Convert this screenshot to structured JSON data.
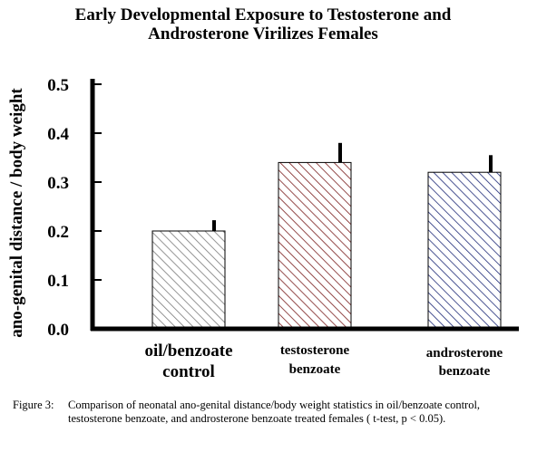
{
  "chart_data": {
    "type": "bar",
    "title_lines": [
      "Early Developmental Exposure to Testosterone and",
      "Androsterone Virilizes Females"
    ],
    "ylabel": "ano-genital distance / body weight",
    "xlabel": "",
    "ylim": [
      0,
      0.5
    ],
    "yticks": [
      "0.0",
      "0.1",
      "0.2",
      "0.3",
      "0.4",
      "0.5"
    ],
    "ytick_values": [
      0,
      0.1,
      0.2,
      0.3,
      0.4,
      0.5
    ],
    "grid": false,
    "categories": [
      [
        "oil/benzoate",
        "control"
      ],
      [
        "testosterone",
        "benzoate"
      ],
      [
        "androsterone",
        "benzoate"
      ]
    ],
    "values": [
      0.2,
      0.34,
      0.32
    ],
    "errors": [
      0.022,
      0.04,
      0.035
    ],
    "bar_colors": [
      "#7a7a7a",
      "#7a1e1e",
      "#1e2a78"
    ],
    "bar_fill": "diagonal-hatch"
  },
  "caption": {
    "label": "Figure 3:",
    "text": "Comparison of neonatal ano-genital distance/body weight statistics in oil/benzoate control, testosterone benzoate, and androsterone benzoate treated females ( t-test, p < 0.05)."
  }
}
